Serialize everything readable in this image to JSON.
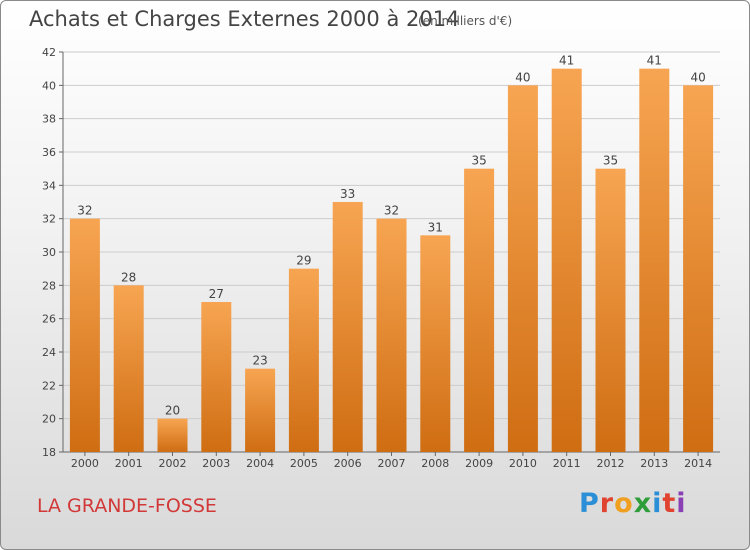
{
  "header": {
    "title": "Achats et Charges Externes 2000 à 2014",
    "subtitle": "(en milliers d'€)"
  },
  "footer": {
    "commune": "LA GRANDE-FOSSE",
    "logo": "Proxiti"
  },
  "colors": {
    "bar_light": "#f7a552",
    "bar_dark": "#cf6d12",
    "commune": "#d23838"
  },
  "chart_data": {
    "type": "bar",
    "title": "Achats et Charges Externes 2000 à 2014",
    "subtitle": "(en milliers d'€)",
    "categories": [
      "2000",
      "2001",
      "2002",
      "2003",
      "2004",
      "2005",
      "2006",
      "2007",
      "2008",
      "2009",
      "2010",
      "2011",
      "2012",
      "2013",
      "2014"
    ],
    "values": [
      32,
      28,
      20,
      27,
      23,
      29,
      33,
      32,
      31,
      35,
      40,
      41,
      35,
      41,
      40
    ],
    "data_labels": [
      "32",
      "28",
      "20",
      "27",
      "23",
      "29",
      "33",
      "32",
      "31",
      "35",
      "40",
      "41",
      "35",
      "41",
      "40"
    ],
    "yticks": [
      "18",
      "20",
      "22",
      "24",
      "26",
      "28",
      "30",
      "32",
      "34",
      "36",
      "38",
      "40",
      "42"
    ],
    "ylim": [
      18,
      42
    ],
    "grid": "horizontal",
    "legend": "none"
  }
}
